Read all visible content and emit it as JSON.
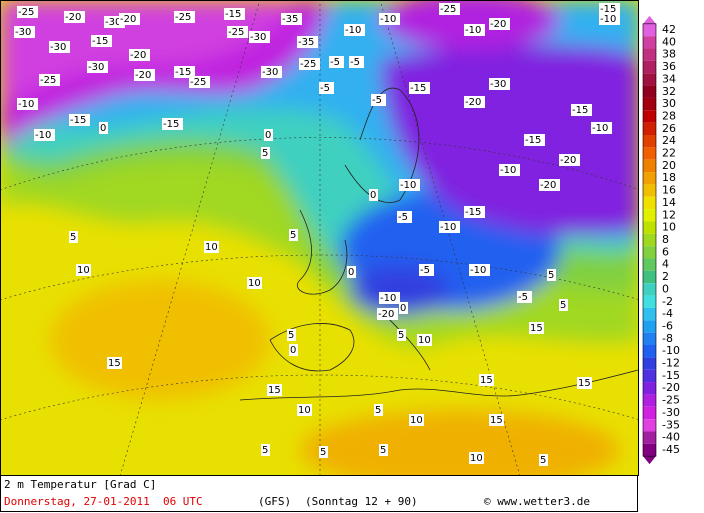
{
  "map": {
    "labels": [
      -25,
      -20,
      -30,
      -30,
      -20,
      -25,
      -15,
      -35,
      -10,
      -25,
      -20,
      -10,
      -15,
      -30,
      -20,
      -25,
      -30,
      -35,
      -10,
      -10,
      -15,
      -20,
      -15,
      -30,
      -25,
      -30,
      -25,
      -5,
      -5,
      -25,
      -10,
      -15,
      0,
      -15,
      -10,
      0,
      5,
      -5,
      -5,
      -15,
      -30,
      -20,
      -15,
      -10,
      -15,
      -20,
      -20,
      -10,
      -15,
      -10,
      -5,
      -10,
      0,
      5,
      10,
      10,
      10,
      5,
      0,
      -5,
      -10,
      -5,
      5,
      5,
      -10,
      -20,
      0,
      5,
      0,
      10,
      5,
      15,
      15,
      15,
      10,
      5,
      10,
      15,
      15,
      15,
      5,
      5,
      5,
      10,
      5
    ]
  },
  "scale": {
    "levels": [
      42,
      40,
      38,
      36,
      34,
      32,
      30,
      28,
      26,
      24,
      22,
      20,
      18,
      16,
      14,
      12,
      10,
      8,
      6,
      4,
      2,
      0,
      -2,
      -4,
      -6,
      -8,
      -10,
      -12,
      -15,
      -20,
      -25,
      -30,
      -35,
      -40,
      -45
    ],
    "colors": [
      "#e060e0",
      "#d040a0",
      "#c03080",
      "#b02060",
      "#a01040",
      "#900020",
      "#a00010",
      "#c00000",
      "#d02000",
      "#e04000",
      "#f06000",
      "#f08000",
      "#f0a000",
      "#f0c000",
      "#f0e000",
      "#e0f000",
      "#c0e000",
      "#a0d820",
      "#80d040",
      "#60c860",
      "#40c080",
      "#40d0c0",
      "#40e0e0",
      "#30c0f0",
      "#20a0f0",
      "#2080f0",
      "#2060f0",
      "#3040e0",
      "#5030e0",
      "#8020e0",
      "#b020e0",
      "#d020e0",
      "#e040e0",
      "#a020a0",
      "#800080"
    ]
  },
  "footer": {
    "title": "2 m Temperatur [Grad C]",
    "date": "Donnerstag, 27-01-2011  06 UTC",
    "model": "(GFS)",
    "forecast": "(Sonntag 12 + 90)",
    "credit": "© www.wetter3.de"
  }
}
